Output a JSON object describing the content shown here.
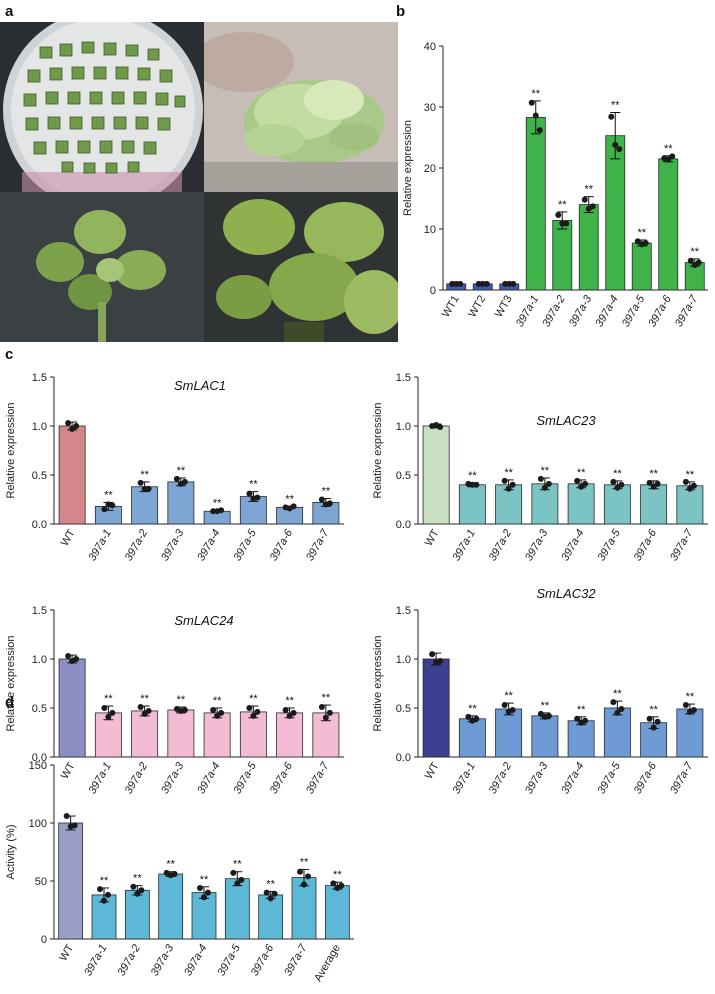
{
  "panels": {
    "a": "a",
    "b": "b",
    "c": "c",
    "d": "d"
  },
  "photos": [
    {
      "name": "petri-dish-photo",
      "bg": "#2b2f33"
    },
    {
      "name": "callus-photo",
      "bg": "#b9b2ad"
    },
    {
      "name": "seedling-photo",
      "bg": "#35393c"
    },
    {
      "name": "plantlet-photo",
      "bg": "#2c2f30"
    }
  ],
  "chart_data": [
    {
      "id": "b",
      "type": "bar",
      "ylabel": "Relative expression",
      "ylim": [
        0,
        40
      ],
      "yticks": [
        0,
        10,
        20,
        30,
        40
      ],
      "categories": [
        "WT1",
        "WT2",
        "WT3",
        "397a-1",
        "397a-2",
        "397a-3",
        "397a-4",
        "397a-5",
        "397a-6",
        "397a-7"
      ],
      "italic_from": 3,
      "values": [
        1,
        1,
        1,
        28.3,
        11.4,
        14.0,
        25.3,
        7.7,
        21.5,
        4.5
      ],
      "errors": [
        0.1,
        0.1,
        0.1,
        2.7,
        1.4,
        1.3,
        3.8,
        0.5,
        0.5,
        0.6
      ],
      "points": [
        [
          1,
          1,
          1
        ],
        [
          1,
          1,
          1
        ],
        [
          1,
          1,
          1
        ],
        [
          30.7,
          28.6,
          26.2
        ],
        [
          12.3,
          10.9,
          10.9
        ],
        [
          14.8,
          13.3,
          13.7
        ],
        [
          28.4,
          23.8,
          23.1
        ],
        [
          8.0,
          7.5,
          7.7
        ],
        [
          21.6,
          21.4,
          21.9
        ],
        [
          4.8,
          4.1,
          4.5
        ]
      ],
      "sig": [
        "",
        "",
        "",
        "**",
        "**",
        "**",
        "**",
        "**",
        "**",
        "**"
      ],
      "colors": [
        "#3b5bab",
        "#3b5bab",
        "#3b5bab",
        "#3fb34a",
        "#3fb34a",
        "#3fb34a",
        "#3fb34a",
        "#3fb34a",
        "#3fb34a",
        "#3fb34a"
      ]
    },
    {
      "id": "c1",
      "type": "bar",
      "gene": "SmLAC1",
      "ylabel": "Relative expression",
      "ylim": [
        0,
        1.5
      ],
      "yticks": [
        0.0,
        0.5,
        1.0,
        1.5
      ],
      "categories": [
        "WT",
        "397a-1",
        "397a-2",
        "397a-3",
        "397a-4",
        "397a-5",
        "397a-6",
        "397a-7"
      ],
      "italic_from": 1,
      "values": [
        1.0,
        0.18,
        0.38,
        0.43,
        0.13,
        0.28,
        0.17,
        0.22
      ],
      "errors": [
        0.04,
        0.04,
        0.05,
        0.04,
        0.01,
        0.05,
        0.01,
        0.04
      ],
      "points": [
        [
          1.03,
          0.97,
          1.0
        ],
        [
          0.15,
          0.2,
          0.19
        ],
        [
          0.42,
          0.36,
          0.36
        ],
        [
          0.46,
          0.41,
          0.43
        ],
        [
          0.13,
          0.13,
          0.14
        ],
        [
          0.31,
          0.26,
          0.27
        ],
        [
          0.17,
          0.16,
          0.18
        ],
        [
          0.25,
          0.2,
          0.21
        ]
      ],
      "sig": [
        "",
        "**",
        "**",
        "**",
        "**",
        "**",
        "**",
        "**"
      ],
      "colors": [
        "#d4868a",
        "#7ea6d5",
        "#7ea6d5",
        "#7ea6d5",
        "#7ea6d5",
        "#7ea6d5",
        "#7ea6d5",
        "#7ea6d5"
      ]
    },
    {
      "id": "c2",
      "type": "bar",
      "gene": "SmLAC23",
      "ylabel": "Relative expression",
      "ylim": [
        0,
        1.5
      ],
      "yticks": [
        0.0,
        0.5,
        1.0,
        1.5
      ],
      "categories": [
        "WT",
        "397a-1",
        "397a-2",
        "397a-3",
        "397a-4",
        "397a-5",
        "397a-6",
        "397a-7"
      ],
      "italic_from": 1,
      "values": [
        1.0,
        0.4,
        0.4,
        0.41,
        0.41,
        0.4,
        0.4,
        0.39
      ],
      "errors": [
        0.02,
        0.02,
        0.05,
        0.06,
        0.04,
        0.04,
        0.04,
        0.04
      ],
      "points": [
        [
          1.0,
          1.01,
          0.99
        ],
        [
          0.41,
          0.4,
          0.4
        ],
        [
          0.44,
          0.36,
          0.4
        ],
        [
          0.46,
          0.37,
          0.41
        ],
        [
          0.44,
          0.38,
          0.41
        ],
        [
          0.43,
          0.37,
          0.4
        ],
        [
          0.42,
          0.38,
          0.41
        ],
        [
          0.43,
          0.36,
          0.39
        ]
      ],
      "sig": [
        "",
        "**",
        "**",
        "**",
        "**",
        "**",
        "**",
        "**"
      ],
      "colors": [
        "#c9e0c2",
        "#7cc3c4",
        "#7cc3c4",
        "#7cc3c4",
        "#7cc3c4",
        "#7cc3c4",
        "#7cc3c4",
        "#7cc3c4"
      ]
    },
    {
      "id": "c3",
      "type": "bar",
      "gene": "SmLAC24",
      "ylabel": "Relative expression",
      "ylim": [
        0,
        1.5
      ],
      "yticks": [
        0.0,
        0.5,
        1.0,
        1.5
      ],
      "categories": [
        "WT",
        "397a-1",
        "397a-2",
        "397a-3",
        "397a-4",
        "397a-5",
        "397a-6",
        "397a-7"
      ],
      "italic_from": 1,
      "values": [
        1.0,
        0.45,
        0.47,
        0.48,
        0.45,
        0.46,
        0.45,
        0.45
      ],
      "errors": [
        0.04,
        0.07,
        0.05,
        0.03,
        0.05,
        0.06,
        0.05,
        0.08
      ],
      "points": [
        [
          1.03,
          0.98,
          1.0
        ],
        [
          0.5,
          0.41,
          0.45
        ],
        [
          0.51,
          0.44,
          0.47
        ],
        [
          0.49,
          0.47,
          0.48
        ],
        [
          0.48,
          0.42,
          0.45
        ],
        [
          0.5,
          0.42,
          0.46
        ],
        [
          0.48,
          0.42,
          0.45
        ],
        [
          0.51,
          0.4,
          0.45
        ]
      ],
      "sig": [
        "",
        "**",
        "**",
        "**",
        "**",
        "**",
        "**",
        "**"
      ],
      "colors": [
        "#8c8fc4",
        "#f3bcd4",
        "#f3bcd4",
        "#f3bcd4",
        "#f3bcd4",
        "#f3bcd4",
        "#f3bcd4",
        "#f3bcd4"
      ]
    },
    {
      "id": "c4",
      "type": "bar",
      "gene": "SmLAC32",
      "ylabel": "Relative expression",
      "ylim": [
        0,
        1.5
      ],
      "yticks": [
        0.0,
        0.5,
        1.0,
        1.5
      ],
      "categories": [
        "WT",
        "397a-1",
        "397a-2",
        "397a-3",
        "397a-4",
        "397a-5",
        "397a-6",
        "397a-7"
      ],
      "italic_from": 1,
      "values": [
        1.0,
        0.39,
        0.49,
        0.42,
        0.37,
        0.5,
        0.35,
        0.49
      ],
      "errors": [
        0.06,
        0.03,
        0.06,
        0.03,
        0.04,
        0.07,
        0.06,
        0.05
      ],
      "points": [
        [
          1.05,
          0.97,
          0.98
        ],
        [
          0.41,
          0.37,
          0.39
        ],
        [
          0.53,
          0.46,
          0.48
        ],
        [
          0.44,
          0.41,
          0.42
        ],
        [
          0.39,
          0.35,
          0.37
        ],
        [
          0.56,
          0.45,
          0.49
        ],
        [
          0.39,
          0.3,
          0.36
        ],
        [
          0.53,
          0.46,
          0.48
        ]
      ],
      "sig": [
        "",
        "**",
        "**",
        "**",
        "**",
        "**",
        "**",
        "**"
      ],
      "colors": [
        "#3d3f8f",
        "#6e9bd4",
        "#6e9bd4",
        "#6e9bd4",
        "#6e9bd4",
        "#6e9bd4",
        "#6e9bd4",
        "#6e9bd4"
      ]
    },
    {
      "id": "d",
      "type": "bar",
      "ylabel": "Activity (%)",
      "ylim": [
        0,
        150
      ],
      "yticks": [
        0,
        50,
        100,
        150
      ],
      "categories": [
        "WT",
        "397a-1",
        "397a-2",
        "397a-3",
        "397a-4",
        "397a-5",
        "397a-6",
        "397a-7",
        "Average"
      ],
      "italic_from": 1,
      "italic_to": 8,
      "values": [
        100,
        38,
        42,
        56,
        40,
        52,
        38,
        53,
        46
      ],
      "errors": [
        6,
        6,
        4,
        2,
        5,
        6,
        3,
        7,
        3
      ],
      "points": [
        [
          106,
          97,
          98
        ],
        [
          43,
          33,
          38
        ],
        [
          45,
          39,
          42
        ],
        [
          57,
          55,
          56
        ],
        [
          44,
          36,
          40
        ],
        [
          57,
          48,
          51
        ],
        [
          40,
          35,
          39
        ],
        [
          58,
          47,
          54
        ],
        [
          48,
          44,
          46
        ]
      ],
      "sig": [
        "",
        "**",
        "**",
        "**",
        "**",
        "**",
        "**",
        "**",
        "**"
      ],
      "colors": [
        "#9a9fc7",
        "#5db8d8",
        "#5db8d8",
        "#5db8d8",
        "#5db8d8",
        "#5db8d8",
        "#5db8d8",
        "#5db8d8",
        "#5db8d8"
      ]
    }
  ]
}
